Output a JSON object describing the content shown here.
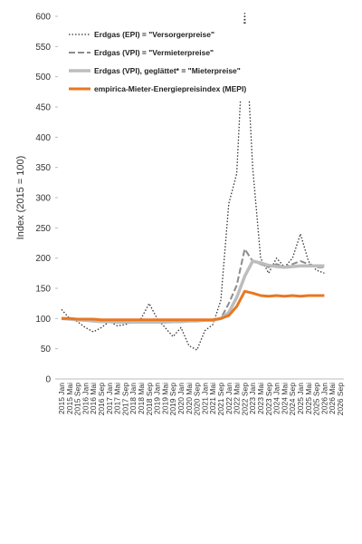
{
  "chart_data": {
    "type": "line",
    "y_label": "Index  (2015 = 100)",
    "categories": [
      "2015 Jan",
      "2015 Mai",
      "2015 Sep",
      "2016 Jan",
      "2016 Mai",
      "2016 Sep",
      "2017 Jan",
      "2017 Mai",
      "2017 Sep",
      "2018 Jan",
      "2018 Mai",
      "2018 Sep",
      "2019 Jan",
      "2019 Mai",
      "2019 Sep",
      "2020 Jan",
      "2020 Mai",
      "2020 Sep",
      "2021 Jan",
      "2021 Mai",
      "2021 Sep",
      "2022 Jan",
      "2022 Mai",
      "2022 Sep",
      "2023 Jan",
      "2023 Mai",
      "2023 Sep",
      "2024 Jan",
      "2024 Mai",
      "2024 Sep",
      "2025 Jan",
      "2025 Mai",
      "2025 Sep",
      "2026 Jan",
      "2026 Mai",
      "2026 Sep"
    ],
    "series": [
      {
        "name": "Erdgas (EPI) = \"Versorgerpreise\"",
        "color": "#333333",
        "line_style": "dotted",
        "width": 1.3,
        "values": [
          115,
          100,
          95,
          85,
          78,
          85,
          95,
          88,
          90,
          95,
          100,
          125,
          100,
          85,
          70,
          85,
          55,
          48,
          80,
          90,
          130,
          290,
          340,
          605,
          350,
          200,
          175,
          200,
          185,
          200,
          240,
          195,
          180,
          175,
          null,
          null
        ]
      },
      {
        "name": "Erdgas (VPI) = \"Vermieterpreise\"",
        "color": "#8c8c8c",
        "line_style": "dashed",
        "width": 2,
        "values": [
          100,
          100,
          99,
          98,
          97,
          96,
          96,
          95,
          95,
          95,
          95,
          96,
          96,
          96,
          96,
          97,
          97,
          97,
          98,
          98,
          100,
          125,
          155,
          215,
          195,
          190,
          185,
          190,
          185,
          190,
          195,
          190,
          185,
          185,
          null,
          null
        ]
      },
      {
        "name": "Erdgas (VPI), geglättet* = \"Mieterpreise\"",
        "color": "#bdbdbd",
        "line_style": "solid",
        "width": 3.5,
        "values": [
          100,
          99,
          98,
          97,
          96,
          95,
          95,
          94,
          94,
          94,
          94,
          94,
          94,
          94,
          95,
          95,
          96,
          96,
          97,
          97,
          100,
          110,
          135,
          170,
          195,
          192,
          188,
          186,
          185,
          186,
          187,
          187,
          187,
          187,
          null,
          null
        ]
      },
      {
        "name": "empirica-Mieter-Energiepreisindex (MEPI)",
        "color": "#e87722",
        "line_style": "solid",
        "width": 3,
        "values": [
          100,
          100,
          99,
          99,
          99,
          98,
          98,
          98,
          98,
          98,
          98,
          98,
          98,
          98,
          98,
          98,
          98,
          98,
          98,
          98,
          100,
          105,
          120,
          145,
          142,
          138,
          137,
          138,
          137,
          138,
          137,
          138,
          138,
          138,
          null,
          null
        ]
      }
    ],
    "ylim": [
      0,
      600
    ],
    "yticks": [
      0,
      50,
      100,
      150,
      200,
      250,
      300,
      350,
      400,
      450,
      500,
      550,
      600
    ]
  }
}
